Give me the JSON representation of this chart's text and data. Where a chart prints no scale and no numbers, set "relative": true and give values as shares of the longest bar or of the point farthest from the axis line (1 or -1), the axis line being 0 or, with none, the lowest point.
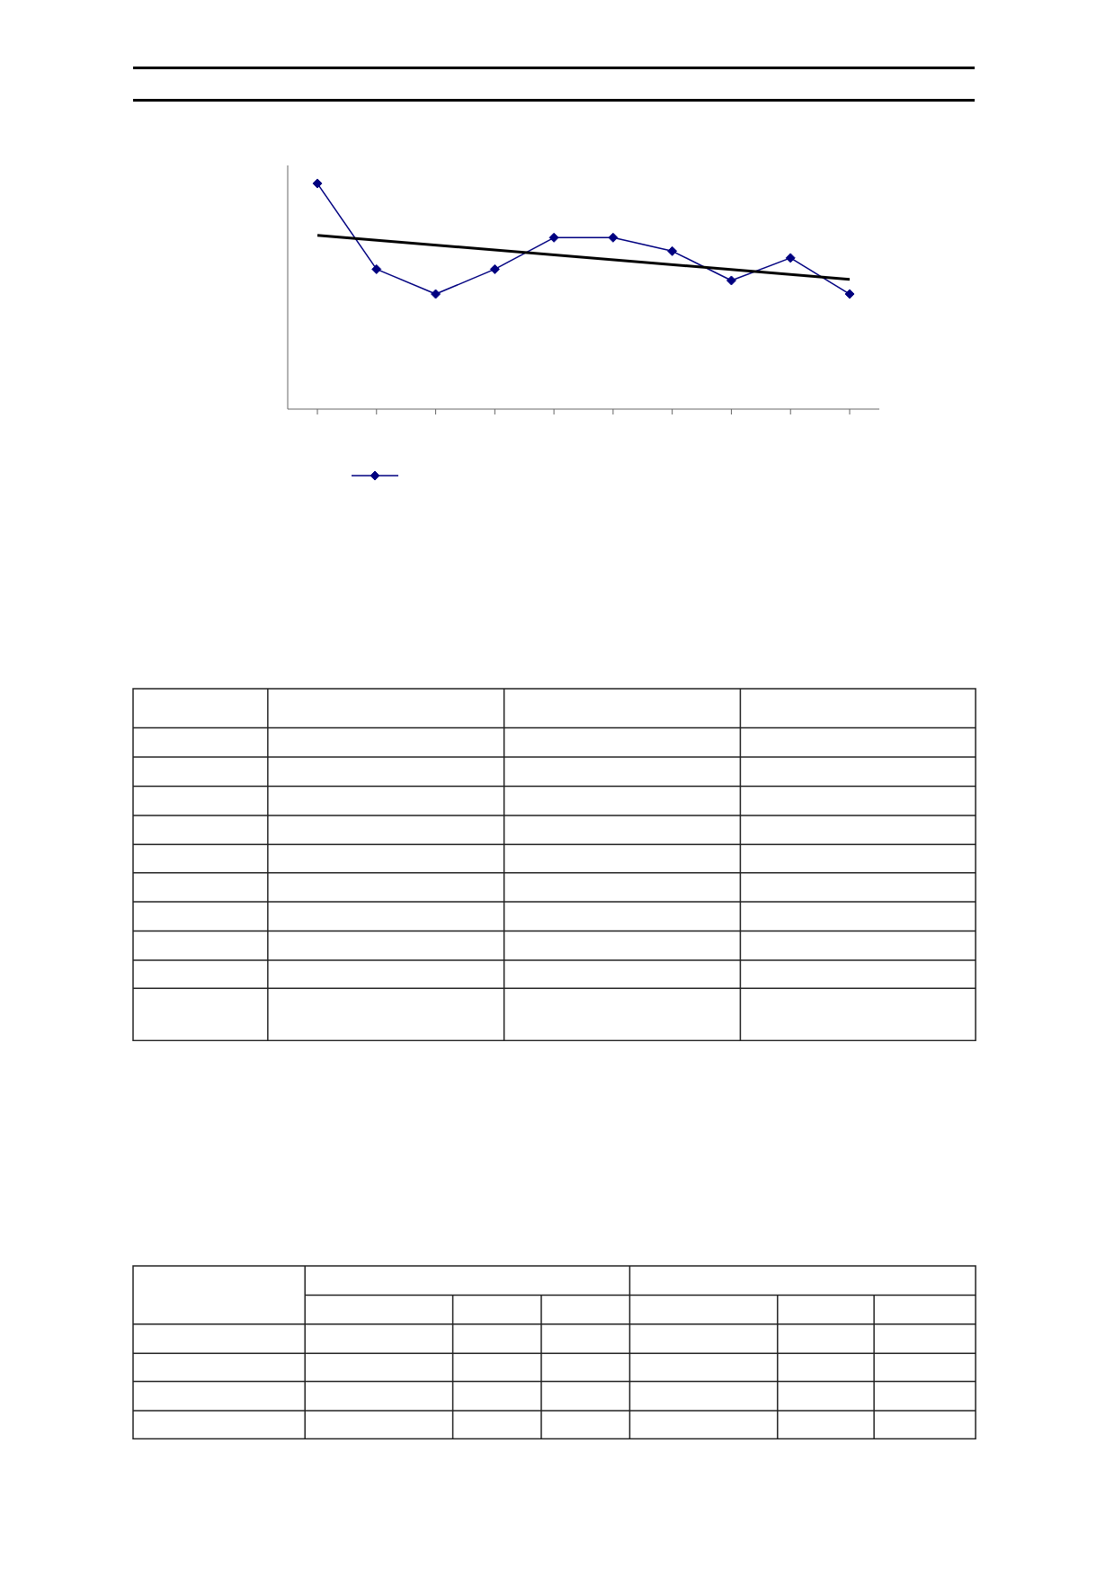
{
  "chart_data": {
    "type": "line",
    "relative": true,
    "categories": [
      null,
      null,
      null,
      null,
      null,
      null,
      null,
      null,
      null,
      null
    ],
    "series": [
      {
        "color": "#000080",
        "values": [
          1,
          0.62,
          0.51,
          0.62,
          0.76,
          0.76,
          0.7,
          0.57,
          0.67,
          0.51
        ]
      },
      {
        "type": "line",
        "color": "#000000",
        "marker": "none",
        "values": [
          0.77,
          null,
          null,
          null,
          null,
          null,
          null,
          null,
          null,
          0.575
        ]
      }
    ],
    "marker": "diamond",
    "grid": false
  }
}
